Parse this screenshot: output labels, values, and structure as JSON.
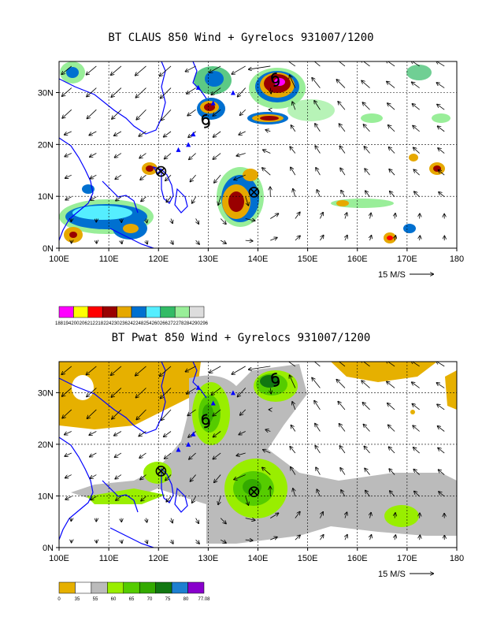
{
  "chart_data": [
    {
      "type": "map-vector",
      "title": "BT CLAUS 850 Wind + Gyrelocs 931007/1200",
      "x_ticks": [
        "100E",
        "110E",
        "120E",
        "130E",
        "140E",
        "150E",
        "160E",
        "170E",
        "180"
      ],
      "y_ticks": [
        "0N",
        "10N",
        "20N",
        "30N"
      ],
      "xlim": [
        100,
        180
      ],
      "ylim": [
        0,
        36
      ],
      "reference_vector": "15 M/S",
      "colorbar_colors": [
        "#ff00ff",
        "#ffff00",
        "#ff0000",
        "#990000",
        "#e6a800",
        "#0070d0",
        "#55eeff",
        "#33bb66",
        "#99ee99",
        "#dddddd"
      ],
      "colorbar_labels": [
        "188",
        "194",
        "200",
        "206",
        "212",
        "218",
        "224",
        "230",
        "236",
        "242",
        "248",
        "254",
        "260",
        "266",
        "272",
        "278",
        "284",
        "290",
        "296"
      ],
      "gyre_centers": [
        [
          120.5,
          14.8
        ],
        [
          139.2,
          10.8
        ]
      ],
      "typhoon_symbols": [
        [
          143.5,
          32.5
        ],
        [
          129.5,
          24.5
        ]
      ],
      "grid": true
    },
    {
      "type": "map-vector",
      "title": "BT Pwat 850 Wind + Gyrelocs 931007/1200",
      "x_ticks": [
        "100E",
        "110E",
        "120E",
        "130E",
        "140E",
        "150E",
        "160E",
        "170E",
        "180"
      ],
      "y_ticks": [
        "0N",
        "10N",
        "20N",
        "30N"
      ],
      "xlim": [
        100,
        180
      ],
      "ylim": [
        0,
        36
      ],
      "reference_vector": "15 M/S",
      "colorbar_colors": [
        "#e6b000",
        "#ffffff",
        "#bbbbbb",
        "#99ee00",
        "#55cc00",
        "#33aa00",
        "#117711",
        "#1e7fd0",
        "#8800cc"
      ],
      "colorbar_labels": [
        "0",
        "35",
        "55",
        "60",
        "65",
        "70",
        "75",
        "80",
        "77.08"
      ],
      "gyre_centers": [
        [
          120.5,
          14.8
        ],
        [
          139.2,
          10.8
        ]
      ],
      "typhoon_symbols": [
        [
          143.5,
          32.5
        ],
        [
          129.5,
          24.5
        ]
      ],
      "grid": true
    }
  ]
}
